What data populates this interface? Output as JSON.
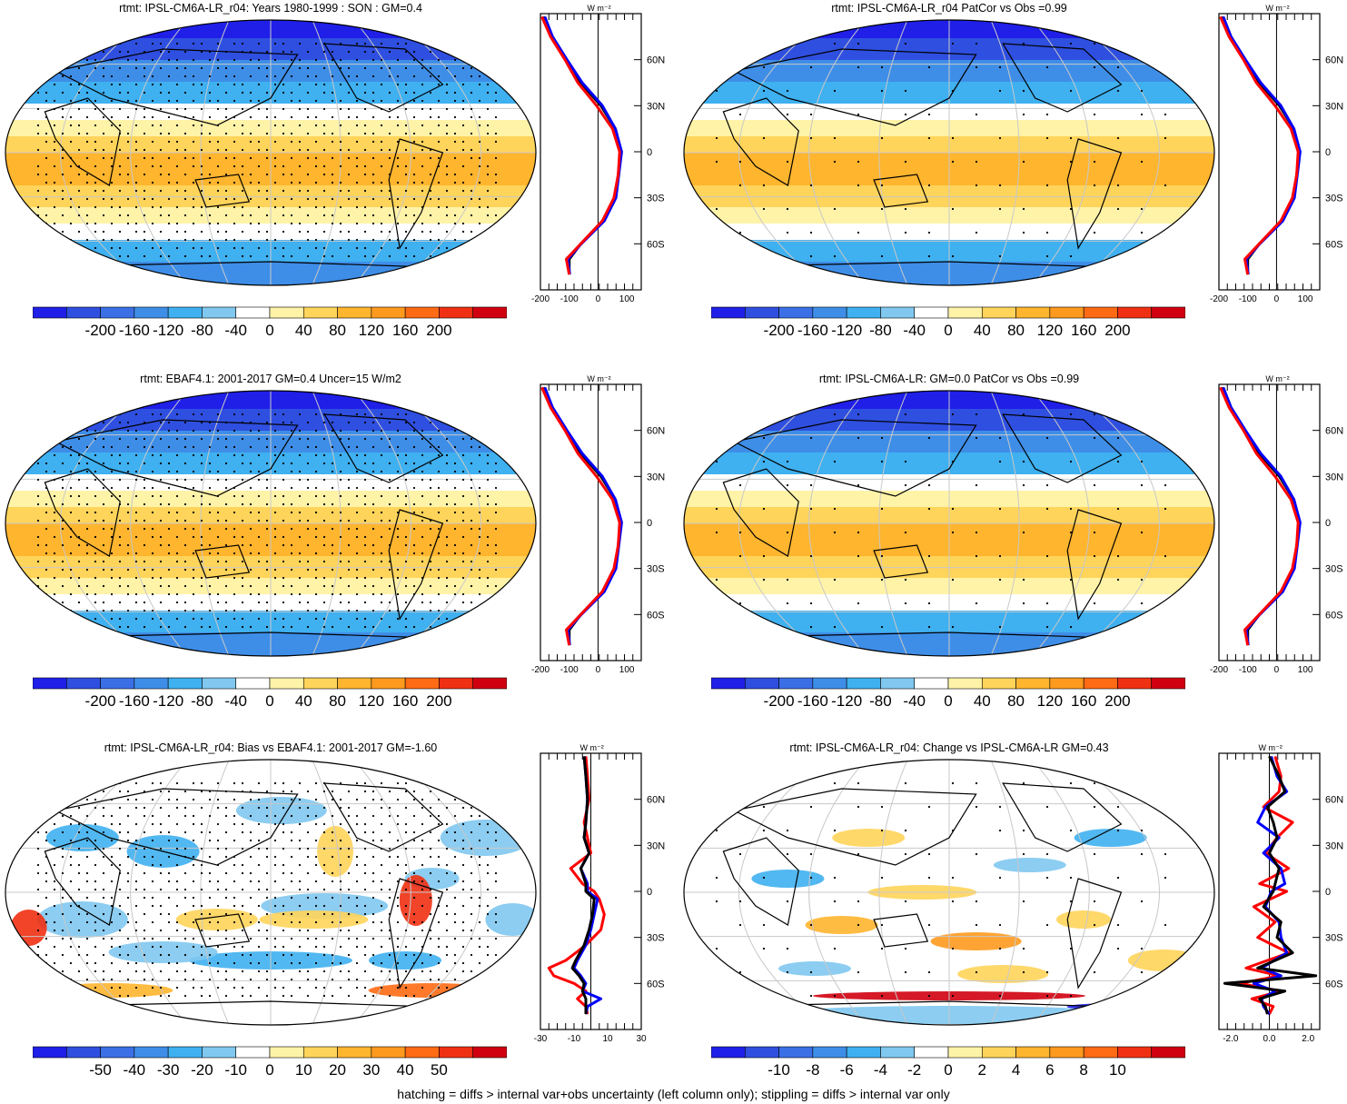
{
  "footnote": "hatching = diffs > internal var+obs uncertainty (left column only); stippling = diffs > internal var only",
  "chart_data": [
    {
      "type": "heatmap",
      "title": "rtmt: IPSL-CM6A-LR_r04: Years 1980-1999 : SON : GM=0.4",
      "colorbar_ticks": [
        "-200",
        "-160",
        "-120",
        "-80",
        "-40",
        "0",
        "40",
        "80",
        "120",
        "160",
        "200"
      ],
      "clim": [
        -220,
        220
      ],
      "zonal": {
        "units": "W m⁻²",
        "x_ticks": [
          "-200",
          "-100",
          "0",
          "100"
        ],
        "xlim": [
          -200,
          150
        ],
        "lat_ticks": [
          "60N",
          "30N",
          "0",
          "30S",
          "60S"
        ],
        "series": [
          {
            "color": "#000000",
            "lat": [
              88,
              75,
              60,
              45,
              30,
              15,
              0,
              -15,
              -30,
              -45,
              -60,
              -70,
              -80
            ],
            "values": [
              -190,
              -160,
              -110,
              -60,
              10,
              60,
              80,
              70,
              60,
              20,
              -60,
              -100,
              -100
            ]
          },
          {
            "color": "#0000ff",
            "lat": [
              88,
              75,
              60,
              45,
              30,
              15,
              0,
              -15,
              -30,
              -45,
              -60,
              -70,
              -80
            ],
            "values": [
              -185,
              -158,
              -108,
              -55,
              15,
              60,
              82,
              72,
              62,
              22,
              -58,
              -105,
              -98
            ]
          },
          {
            "color": "#ff0000",
            "lat": [
              88,
              75,
              60,
              45,
              30,
              15,
              0,
              -15,
              -30,
              -45,
              -60,
              -70,
              -80
            ],
            "values": [
              -195,
              -165,
              -115,
              -70,
              -5,
              50,
              75,
              70,
              55,
              15,
              -60,
              -110,
              -100
            ]
          }
        ]
      }
    },
    {
      "type": "heatmap",
      "title": "rtmt: IPSL-CM6A-LR_r04 PatCor vs Obs =0.99",
      "colorbar_ticks": [
        "-200",
        "-160",
        "-120",
        "-80",
        "-40",
        "0",
        "40",
        "80",
        "120",
        "160",
        "200"
      ],
      "clim": [
        -220,
        220
      ],
      "zonal": {
        "units": "W m⁻²",
        "x_ticks": [
          "-200",
          "-100",
          "0",
          "100"
        ],
        "xlim": [
          -200,
          150
        ],
        "lat_ticks": [
          "60N",
          "30N",
          "0",
          "30S",
          "60S"
        ],
        "series": [
          {
            "color": "#000000",
            "lat": [
              88,
              75,
              60,
              45,
              30,
              15,
              0,
              -15,
              -30,
              -45,
              -60,
              -70,
              -80
            ],
            "values": [
              -190,
              -160,
              -110,
              -60,
              10,
              60,
              80,
              70,
              60,
              20,
              -60,
              -100,
              -100
            ]
          },
          {
            "color": "#0000ff",
            "lat": [
              88,
              75,
              60,
              45,
              30,
              15,
              0,
              -15,
              -30,
              -45,
              -60,
              -70,
              -80
            ],
            "values": [
              -185,
              -158,
              -108,
              -55,
              15,
              60,
              82,
              72,
              62,
              22,
              -58,
              -105,
              -98
            ]
          },
          {
            "color": "#ff0000",
            "lat": [
              88,
              75,
              60,
              45,
              30,
              15,
              0,
              -15,
              -30,
              -45,
              -60,
              -70,
              -80
            ],
            "values": [
              -195,
              -165,
              -115,
              -70,
              -5,
              50,
              75,
              70,
              55,
              15,
              -60,
              -110,
              -100
            ]
          }
        ]
      }
    },
    {
      "type": "heatmap",
      "title": "rtmt: EBAF4.1: 2001-2017 GM=0.4 Uncer=15 W/m2",
      "colorbar_ticks": [
        "-200",
        "-160",
        "-120",
        "-80",
        "-40",
        "0",
        "40",
        "80",
        "120",
        "160",
        "200"
      ],
      "clim": [
        -220,
        220
      ],
      "zonal": {
        "units": "W m⁻²",
        "x_ticks": [
          "-200",
          "-100",
          "0",
          "100"
        ],
        "xlim": [
          -200,
          150
        ],
        "lat_ticks": [
          "60N",
          "30N",
          "0",
          "30S",
          "60S"
        ],
        "series": [
          {
            "color": "#000000",
            "lat": [
              88,
              75,
              60,
              45,
              30,
              15,
              0,
              -15,
              -30,
              -45,
              -60,
              -70,
              -80
            ],
            "values": [
              -190,
              -160,
              -110,
              -60,
              10,
              60,
              80,
              70,
              60,
              20,
              -60,
              -100,
              -100
            ]
          },
          {
            "color": "#0000ff",
            "lat": [
              88,
              75,
              60,
              45,
              30,
              15,
              0,
              -15,
              -30,
              -45,
              -60,
              -70,
              -80
            ],
            "values": [
              -185,
              -158,
              -108,
              -55,
              15,
              60,
              82,
              72,
              62,
              22,
              -58,
              -105,
              -98
            ]
          },
          {
            "color": "#ff0000",
            "lat": [
              88,
              75,
              60,
              45,
              30,
              15,
              0,
              -15,
              -30,
              -45,
              -60,
              -70,
              -80
            ],
            "values": [
              -195,
              -165,
              -115,
              -70,
              -5,
              50,
              75,
              70,
              55,
              15,
              -60,
              -110,
              -100
            ]
          }
        ]
      }
    },
    {
      "type": "heatmap",
      "title": "rtmt: IPSL-CM6A-LR: GM=0.0 PatCor vs Obs =0.99",
      "colorbar_ticks": [
        "-200",
        "-160",
        "-120",
        "-80",
        "-40",
        "0",
        "40",
        "80",
        "120",
        "160",
        "200"
      ],
      "clim": [
        -220,
        220
      ],
      "zonal": {
        "units": "W m⁻²",
        "x_ticks": [
          "-200",
          "-100",
          "0",
          "100"
        ],
        "xlim": [
          -200,
          150
        ],
        "lat_ticks": [
          "60N",
          "30N",
          "0",
          "30S",
          "60S"
        ],
        "series": [
          {
            "color": "#000000",
            "lat": [
              88,
              75,
              60,
              45,
              30,
              15,
              0,
              -15,
              -30,
              -45,
              -60,
              -70,
              -80
            ],
            "values": [
              -190,
              -160,
              -110,
              -60,
              10,
              60,
              80,
              70,
              60,
              20,
              -60,
              -100,
              -100
            ]
          },
          {
            "color": "#0000ff",
            "lat": [
              88,
              75,
              60,
              45,
              30,
              15,
              0,
              -15,
              -30,
              -45,
              -60,
              -70,
              -80
            ],
            "values": [
              -185,
              -158,
              -108,
              -55,
              15,
              60,
              82,
              72,
              62,
              22,
              -58,
              -105,
              -98
            ]
          },
          {
            "color": "#ff0000",
            "lat": [
              88,
              75,
              60,
              45,
              30,
              15,
              0,
              -15,
              -30,
              -45,
              -60,
              -70,
              -80
            ],
            "values": [
              -195,
              -165,
              -115,
              -70,
              -5,
              50,
              75,
              70,
              55,
              15,
              -60,
              -110,
              -100
            ]
          }
        ]
      }
    },
    {
      "type": "heatmap",
      "title": "rtmt: IPSL-CM6A-LR_r04: Bias vs EBAF4.1: 2001-2017  GM=-1.60",
      "colorbar_ticks": [
        "-50",
        "-40",
        "-30",
        "-20",
        "-10",
        "0",
        "10",
        "20",
        "30",
        "40",
        "50"
      ],
      "clim": [
        -55,
        55
      ],
      "zonal": {
        "units": "W m⁻²",
        "x_ticks": [
          "-30",
          "-10",
          "10",
          "30"
        ],
        "xlim": [
          -30,
          30
        ],
        "lat_ticks": [
          "60N",
          "30N",
          "0",
          "30S",
          "60S"
        ],
        "series": [
          {
            "color": "#ff0000",
            "lat": [
              88,
              75,
              60,
              45,
              35,
              25,
              15,
              5,
              0,
              -5,
              -15,
              -25,
              -35,
              -45,
              -50,
              -55,
              -60,
              -65,
              -70,
              -75,
              -80
            ],
            "values": [
              -3,
              -2,
              -1,
              -4,
              -2,
              0,
              -12,
              -5,
              2,
              5,
              8,
              6,
              -3,
              -15,
              -25,
              -22,
              -10,
              -3,
              -8,
              -3,
              -2
            ]
          },
          {
            "color": "#0000ff",
            "lat": [
              88,
              75,
              60,
              45,
              35,
              25,
              15,
              5,
              0,
              -5,
              -15,
              -25,
              -35,
              -45,
              -50,
              -55,
              -60,
              -65,
              -70,
              -75,
              -80
            ],
            "values": [
              -4,
              -3,
              -2,
              -3,
              -4,
              -1,
              -6,
              -2,
              -2,
              4,
              2,
              0,
              -3,
              -8,
              -10,
              -6,
              -3,
              -5,
              6,
              -2,
              -3
            ]
          },
          {
            "color": "#000000",
            "lat": [
              88,
              75,
              60,
              45,
              35,
              25,
              15,
              5,
              0,
              -5,
              -15,
              -25,
              -35,
              -45,
              -50,
              -55,
              -60,
              -65,
              -70,
              -75,
              -80
            ],
            "values": [
              -4,
              -3,
              -2,
              -3,
              -4,
              -1,
              -6,
              -3,
              -3,
              2,
              1,
              -1,
              -4,
              -9,
              -11,
              -7,
              -4,
              -5,
              -3,
              -3,
              -3
            ]
          }
        ]
      }
    },
    {
      "type": "heatmap",
      "title": "rtmt: IPSL-CM6A-LR_r04: Change vs IPSL-CM6A-LR GM=0.43",
      "colorbar_ticks": [
        "-10",
        "-8",
        "-6",
        "-4",
        "-2",
        "0",
        "2",
        "4",
        "6",
        "8",
        "10"
      ],
      "clim": [
        -11,
        11
      ],
      "zonal": {
        "units": "W m⁻²",
        "x_ticks": [
          "-2.0",
          "0.0",
          "2.0"
        ],
        "xlim": [
          -2.6,
          2.6
        ],
        "lat_ticks": [
          "60N",
          "30N",
          "0",
          "30S",
          "60S"
        ],
        "series": [
          {
            "color": "#ff0000",
            "lat": [
              88,
              75,
              65,
              55,
              45,
              35,
              25,
              15,
              5,
              0,
              -10,
              -20,
              -30,
              -40,
              -50,
              -55,
              -60,
              -65,
              -70,
              -75,
              -80
            ],
            "values": [
              0.3,
              0.6,
              0.5,
              -0.3,
              1.2,
              0.4,
              -0.2,
              1.0,
              -0.5,
              0.9,
              -0.8,
              0.3,
              -0.6,
              1.0,
              -1.2,
              0.5,
              -1.5,
              0.6,
              -0.9,
              0.2,
              0.0
            ]
          },
          {
            "color": "#0000ff",
            "lat": [
              88,
              75,
              65,
              55,
              45,
              35,
              25,
              15,
              5,
              0,
              -10,
              -20,
              -30,
              -40,
              -50,
              -55,
              -60,
              -65,
              -70,
              -75,
              -80
            ],
            "values": [
              0.1,
              0.4,
              0.9,
              -0.2,
              -0.6,
              0.5,
              -0.3,
              0.6,
              0.8,
              0.1,
              -0.2,
              0.5,
              0.6,
              0.9,
              -0.4,
              0.6,
              -0.8,
              0.3,
              -0.4,
              -0.3,
              0.0
            ]
          },
          {
            "color": "#000000",
            "lat": [
              88,
              75,
              65,
              55,
              45,
              35,
              25,
              15,
              5,
              0,
              -10,
              -20,
              -30,
              -40,
              -50,
              -55,
              -60,
              -65,
              -70,
              -75,
              -80
            ],
            "values": [
              0.0,
              0.5,
              0.8,
              -0.1,
              0.2,
              0.4,
              0.0,
              0.5,
              0.3,
              0.2,
              -0.3,
              0.6,
              0.4,
              1.2,
              -0.6,
              2.4,
              -2.3,
              0.8,
              -0.5,
              -0.2,
              -0.1
            ]
          }
        ]
      }
    }
  ]
}
